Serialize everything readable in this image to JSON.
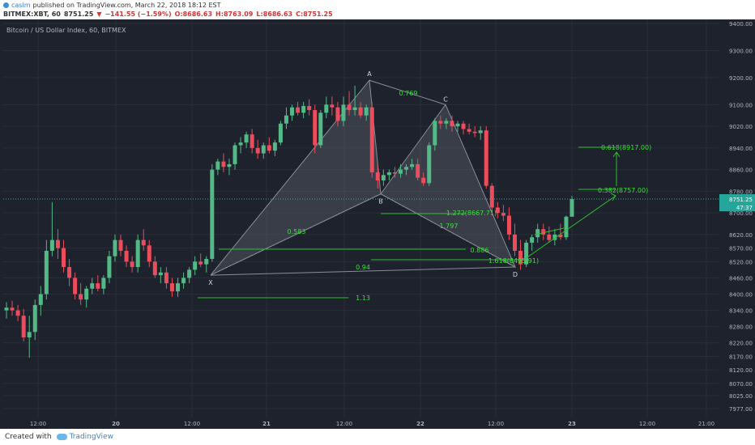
{
  "header": {
    "publisher": "caslm",
    "published_text": "published on TradingView.com, March 22, 2018 18:12 EST",
    "symbol": "BITMEX:XBT, 60",
    "price": "8751.25",
    "change_arrow": "▼",
    "change": "−141.55 (−1.59%)",
    "open": "O:8686.63",
    "high": "H:8763.09",
    "low": "L:8686.63",
    "close": "C:8751.25"
  },
  "footer": {
    "created_with": "Created with",
    "brand": "TradingView"
  },
  "chart_data": {
    "type": "candlestick",
    "title": "Bitcoin / US Dollar Index, 60, BITMEX",
    "x_tick_labels": [
      "12:00",
      "20",
      "12:00",
      "21",
      "12:00",
      "22",
      "12:00",
      "23",
      "12:00",
      "21:00"
    ],
    "y_tick_labels": [
      "9400.00",
      "9300.00",
      "9200.00",
      "9100.00",
      "9020.00",
      "8940.00",
      "8860.00",
      "8780.00",
      "8700.00",
      "8620.00",
      "8570.00",
      "8520.00",
      "8460.00",
      "8400.00",
      "8340.00",
      "8280.00",
      "8220.00",
      "8170.00",
      "8120.00",
      "8070.00",
      "8025.00",
      "7977.00"
    ],
    "last_price_label": "8751.25",
    "countdown_label": "47:37",
    "pattern_points": [
      {
        "name": "X",
        "value": 8470
      },
      {
        "name": "A",
        "value": 9190
      },
      {
        "name": "B",
        "value": 8770
      },
      {
        "name": "C",
        "value": 9100
      },
      {
        "name": "D",
        "value": 8500
      }
    ],
    "ratio_labels": [
      "0.769",
      "0.583",
      "1.272(8667.71)",
      "1.797",
      "0.886",
      "1.618(8495.91)",
      "0.94",
      "1.13",
      "0.618(8917.00)",
      "0.382(8757.00)"
    ],
    "candles": [
      {
        "o": 8340,
        "h": 8370,
        "l": 8310,
        "c": 8350
      },
      {
        "o": 8350,
        "h": 8375,
        "l": 8320,
        "c": 8340
      },
      {
        "o": 8340,
        "h": 8360,
        "l": 8300,
        "c": 8320
      },
      {
        "o": 8320,
        "h": 8345,
        "l": 8225,
        "c": 8240
      },
      {
        "o": 8240,
        "h": 8320,
        "l": 8165,
        "c": 8260
      },
      {
        "o": 8260,
        "h": 8380,
        "l": 8230,
        "c": 8360
      },
      {
        "o": 8360,
        "h": 8430,
        "l": 8320,
        "c": 8400
      },
      {
        "o": 8400,
        "h": 8600,
        "l": 8380,
        "c": 8560
      },
      {
        "o": 8560,
        "h": 8740,
        "l": 8540,
        "c": 8600
      },
      {
        "o": 8600,
        "h": 8640,
        "l": 8530,
        "c": 8570
      },
      {
        "o": 8570,
        "h": 8600,
        "l": 8480,
        "c": 8500
      },
      {
        "o": 8500,
        "h": 8530,
        "l": 8430,
        "c": 8460
      },
      {
        "o": 8460,
        "h": 8480,
        "l": 8380,
        "c": 8400
      },
      {
        "o": 8400,
        "h": 8440,
        "l": 8360,
        "c": 8380
      },
      {
        "o": 8380,
        "h": 8430,
        "l": 8350,
        "c": 8420
      },
      {
        "o": 8420,
        "h": 8460,
        "l": 8400,
        "c": 8440
      },
      {
        "o": 8440,
        "h": 8470,
        "l": 8410,
        "c": 8420
      },
      {
        "o": 8420,
        "h": 8470,
        "l": 8400,
        "c": 8460
      },
      {
        "o": 8460,
        "h": 8560,
        "l": 8440,
        "c": 8540
      },
      {
        "o": 8540,
        "h": 8620,
        "l": 8520,
        "c": 8600
      },
      {
        "o": 8600,
        "h": 8620,
        "l": 8540,
        "c": 8560
      },
      {
        "o": 8560,
        "h": 8580,
        "l": 8500,
        "c": 8520
      },
      {
        "o": 8520,
        "h": 8540,
        "l": 8480,
        "c": 8500
      },
      {
        "o": 8500,
        "h": 8620,
        "l": 8480,
        "c": 8600
      },
      {
        "o": 8600,
        "h": 8640,
        "l": 8560,
        "c": 8580
      },
      {
        "o": 8580,
        "h": 8600,
        "l": 8500,
        "c": 8520
      },
      {
        "o": 8520,
        "h": 8540,
        "l": 8460,
        "c": 8470
      },
      {
        "o": 8470,
        "h": 8500,
        "l": 8440,
        "c": 8480
      },
      {
        "o": 8480,
        "h": 8500,
        "l": 8420,
        "c": 8440
      },
      {
        "o": 8440,
        "h": 8460,
        "l": 8390,
        "c": 8410
      },
      {
        "o": 8410,
        "h": 8460,
        "l": 8390,
        "c": 8440
      },
      {
        "o": 8440,
        "h": 8480,
        "l": 8420,
        "c": 8460
      },
      {
        "o": 8460,
        "h": 8500,
        "l": 8440,
        "c": 8490
      },
      {
        "o": 8490,
        "h": 8540,
        "l": 8470,
        "c": 8520
      },
      {
        "o": 8520,
        "h": 8550,
        "l": 8500,
        "c": 8510
      },
      {
        "o": 8510,
        "h": 8540,
        "l": 8480,
        "c": 8530
      },
      {
        "o": 8530,
        "h": 8880,
        "l": 8520,
        "c": 8860
      },
      {
        "o": 8860,
        "h": 8900,
        "l": 8840,
        "c": 8890
      },
      {
        "o": 8890,
        "h": 8920,
        "l": 8850,
        "c": 8870
      },
      {
        "o": 8870,
        "h": 8900,
        "l": 8840,
        "c": 8880
      },
      {
        "o": 8880,
        "h": 8960,
        "l": 8860,
        "c": 8950
      },
      {
        "o": 8950,
        "h": 8980,
        "l": 8920,
        "c": 8960
      },
      {
        "o": 8960,
        "h": 9000,
        "l": 8940,
        "c": 8990
      },
      {
        "o": 8990,
        "h": 9010,
        "l": 8920,
        "c": 8940
      },
      {
        "o": 8940,
        "h": 8970,
        "l": 8900,
        "c": 8920
      },
      {
        "o": 8920,
        "h": 8960,
        "l": 8900,
        "c": 8950
      },
      {
        "o": 8950,
        "h": 8980,
        "l": 8920,
        "c": 8930
      },
      {
        "o": 8930,
        "h": 8970,
        "l": 8910,
        "c": 8960
      },
      {
        "o": 8960,
        "h": 9040,
        "l": 8950,
        "c": 9030
      },
      {
        "o": 9030,
        "h": 9090,
        "l": 9010,
        "c": 9060
      },
      {
        "o": 9060,
        "h": 9100,
        "l": 9040,
        "c": 9090
      },
      {
        "o": 9090,
        "h": 9110,
        "l": 9060,
        "c": 9070
      },
      {
        "o": 9070,
        "h": 9110,
        "l": 9050,
        "c": 9095
      },
      {
        "o": 9095,
        "h": 9120,
        "l": 9060,
        "c": 9080
      },
      {
        "o": 9080,
        "h": 9100,
        "l": 8920,
        "c": 8950
      },
      {
        "o": 8950,
        "h": 9080,
        "l": 8940,
        "c": 9070
      },
      {
        "o": 9070,
        "h": 9130,
        "l": 9050,
        "c": 9100
      },
      {
        "o": 9100,
        "h": 9130,
        "l": 9060,
        "c": 9090
      },
      {
        "o": 9090,
        "h": 9110,
        "l": 9020,
        "c": 9040
      },
      {
        "o": 9040,
        "h": 9130,
        "l": 9020,
        "c": 9100
      },
      {
        "o": 9100,
        "h": 9150,
        "l": 9060,
        "c": 9080
      },
      {
        "o": 9080,
        "h": 9170,
        "l": 9060,
        "c": 9090
      },
      {
        "o": 9090,
        "h": 9110,
        "l": 9050,
        "c": 9060
      },
      {
        "o": 9060,
        "h": 9100,
        "l": 9040,
        "c": 9090
      },
      {
        "o": 9090,
        "h": 9110,
        "l": 8830,
        "c": 8850
      },
      {
        "o": 8850,
        "h": 8880,
        "l": 8790,
        "c": 8820
      },
      {
        "o": 8820,
        "h": 8860,
        "l": 8800,
        "c": 8840
      },
      {
        "o": 8840,
        "h": 8860,
        "l": 8820,
        "c": 8850
      },
      {
        "o": 8850,
        "h": 8870,
        "l": 8830,
        "c": 8845
      },
      {
        "o": 8845,
        "h": 8880,
        "l": 8830,
        "c": 8860
      },
      {
        "o": 8860,
        "h": 8880,
        "l": 8840,
        "c": 8870
      },
      {
        "o": 8870,
        "h": 8900,
        "l": 8860,
        "c": 8880
      },
      {
        "o": 8880,
        "h": 8900,
        "l": 8820,
        "c": 8830
      },
      {
        "o": 8830,
        "h": 8850,
        "l": 8800,
        "c": 8810
      },
      {
        "o": 8810,
        "h": 8960,
        "l": 8800,
        "c": 8950
      },
      {
        "o": 8950,
        "h": 9050,
        "l": 8930,
        "c": 9040
      },
      {
        "o": 9040,
        "h": 9060,
        "l": 9010,
        "c": 9030
      },
      {
        "o": 9030,
        "h": 9050,
        "l": 9010,
        "c": 9040
      },
      {
        "o": 9040,
        "h": 9060,
        "l": 9000,
        "c": 9020
      },
      {
        "o": 9020,
        "h": 9040,
        "l": 9000,
        "c": 9030
      },
      {
        "o": 9030,
        "h": 9040,
        "l": 8990,
        "c": 9010
      },
      {
        "o": 9010,
        "h": 9030,
        "l": 8990,
        "c": 9000
      },
      {
        "o": 9000,
        "h": 9020,
        "l": 8980,
        "c": 8995
      },
      {
        "o": 8995,
        "h": 9020,
        "l": 8970,
        "c": 9005
      },
      {
        "o": 9005,
        "h": 9020,
        "l": 8790,
        "c": 8800
      },
      {
        "o": 8800,
        "h": 8810,
        "l": 8700,
        "c": 8720
      },
      {
        "o": 8720,
        "h": 8740,
        "l": 8680,
        "c": 8700
      },
      {
        "o": 8700,
        "h": 8730,
        "l": 8670,
        "c": 8690
      },
      {
        "o": 8690,
        "h": 8720,
        "l": 8600,
        "c": 8620
      },
      {
        "o": 8620,
        "h": 8660,
        "l": 8540,
        "c": 8560
      },
      {
        "o": 8560,
        "h": 8600,
        "l": 8490,
        "c": 8510
      },
      {
        "o": 8510,
        "h": 8600,
        "l": 8500,
        "c": 8590
      },
      {
        "o": 8590,
        "h": 8620,
        "l": 8560,
        "c": 8610
      },
      {
        "o": 8610,
        "h": 8660,
        "l": 8590,
        "c": 8640
      },
      {
        "o": 8640,
        "h": 8660,
        "l": 8600,
        "c": 8620
      },
      {
        "o": 8620,
        "h": 8650,
        "l": 8590,
        "c": 8600
      },
      {
        "o": 8600,
        "h": 8640,
        "l": 8580,
        "c": 8620
      },
      {
        "o": 8620,
        "h": 8660,
        "l": 8600,
        "c": 8610
      },
      {
        "o": 8610,
        "h": 8690,
        "l": 8600,
        "c": 8686
      },
      {
        "o": 8686,
        "h": 8763,
        "l": 8686,
        "c": 8751
      }
    ]
  },
  "colors": {
    "background": "#1e222d",
    "up": "#53b987",
    "down": "#eb4d5c",
    "pattern_line": "#8a8d96",
    "fib_line": "#2fbd2f",
    "fib_text": "#37e237",
    "axis_text": "#b2b5be",
    "grid": "#2a2e39"
  }
}
